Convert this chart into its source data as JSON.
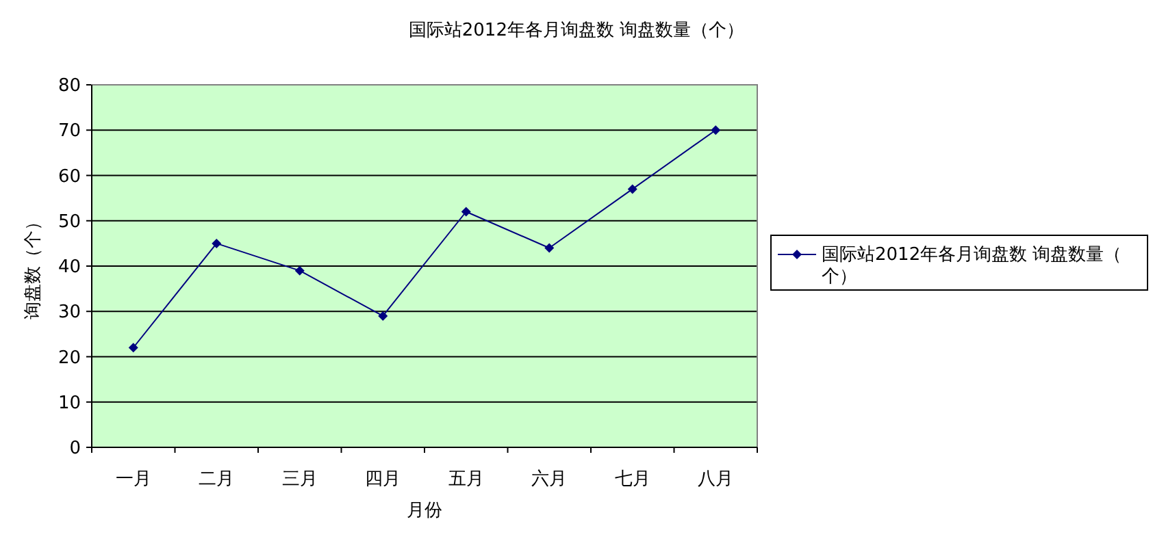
{
  "chart_data": {
    "type": "line",
    "title": "国际站2012年各月询盘数 询盘数量（个）",
    "xlabel": "月份",
    "ylabel": "询盘数（个）",
    "categories": [
      "一月",
      "二月",
      "三月",
      "四月",
      "五月",
      "六月",
      "七月",
      "八月"
    ],
    "series": [
      {
        "name": "国际站2012年各月询盘数 询盘数量（个）",
        "color": "#000080",
        "values": [
          22,
          45,
          39,
          29,
          52,
          44,
          57,
          70
        ]
      }
    ],
    "ylim": [
      0,
      80
    ],
    "yticks": [
      0,
      10,
      20,
      30,
      40,
      50,
      60,
      70,
      80
    ],
    "grid": "y",
    "legend": "right",
    "marker": "diamond",
    "line_style": "solid"
  }
}
